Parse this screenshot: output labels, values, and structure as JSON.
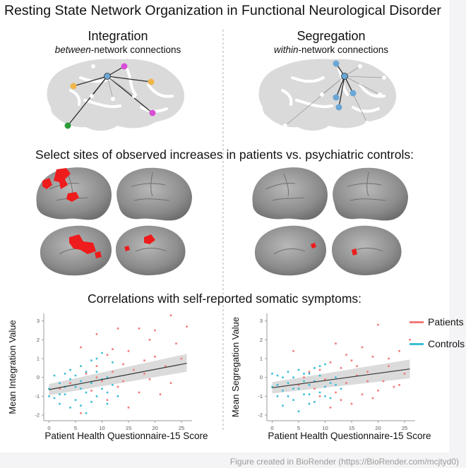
{
  "title": "Resting State Network Organization in Functional Neurological Disorder",
  "integration": {
    "heading": "Integration",
    "sub_italic": "between",
    "sub_rest": "-network connections"
  },
  "segregation": {
    "heading": "Segregation",
    "sub_italic": "within",
    "sub_rest": "-network connections"
  },
  "sites_heading": "Select sites of observed increases in patients vs. psychiatric controls:",
  "correlations_heading": "Correlations with self-reported somatic symptoms:",
  "legend": [
    {
      "label": "Patients",
      "color": "#f07b7b"
    },
    {
      "label": "Controls",
      "color": "#3cbfd6"
    }
  ],
  "credit": "Figure created in BioRender (https://BioRender.com/mcjtyd0)",
  "colors": {
    "patients": "#f07b7b",
    "controls": "#3cbfd6",
    "brain": "#d9d9d9",
    "cortex": "#8a8a8a",
    "activation": "#ee1c1c",
    "node_blue": "#6aa7d6",
    "node_orange": "#f0b64a",
    "node_magenta": "#d94fd6",
    "node_green": "#2e9b3a"
  },
  "chart_data": [
    {
      "type": "scatter",
      "title": "",
      "xlabel": "Patient Health Questionnaire-15 Score",
      "ylabel": "Mean Integration Value",
      "xlim": [
        -1,
        27
      ],
      "ylim": [
        -2.3,
        3.4
      ],
      "xticks": [
        "0",
        "5",
        "10",
        "15",
        "20",
        "25"
      ],
      "yticks": [
        "-2",
        "-1",
        "0",
        "1",
        "2",
        "3"
      ],
      "fit": {
        "x": [
          0,
          26
        ],
        "y": [
          -0.65,
          0.75
        ],
        "band_lo_end": 0.3,
        "band_hi_end": 1.25,
        "band_lo_start": -0.95,
        "band_hi_start": -0.35
      },
      "series": [
        {
          "name": "Patients",
          "points": [
            [
              23,
              3.3
            ],
            [
              26,
              2.7
            ],
            [
              20,
              2.5
            ],
            [
              17,
              2.6
            ],
            [
              13,
              2.6
            ],
            [
              9,
              2.3
            ],
            [
              19,
              2.0
            ],
            [
              24,
              1.8
            ],
            [
              6,
              1.6
            ],
            [
              12,
              1.5
            ],
            [
              15,
              1.4
            ],
            [
              11,
              1.2
            ],
            [
              20,
              1.1
            ],
            [
              25,
              1.0
            ],
            [
              18,
              0.9
            ],
            [
              14,
              0.7
            ],
            [
              22,
              0.6
            ],
            [
              9,
              0.6
            ],
            [
              16,
              0.4
            ],
            [
              7,
              0.2
            ],
            [
              12,
              0.3
            ],
            [
              19,
              -0.1
            ],
            [
              10,
              -0.2
            ],
            [
              23,
              -0.3
            ],
            [
              4,
              -0.3
            ],
            [
              13,
              -0.5
            ],
            [
              17,
              -0.8
            ],
            [
              8,
              -0.7
            ],
            [
              21,
              -0.9
            ],
            [
              11,
              -1.2
            ],
            [
              2,
              -0.6
            ],
            [
              15,
              -1.6
            ],
            [
              6,
              -1.9
            ],
            [
              9,
              0.0
            ],
            [
              18,
              0.2
            ],
            [
              14,
              -0.2
            ]
          ]
        },
        {
          "name": "Controls",
          "points": [
            [
              0,
              -0.6
            ],
            [
              1,
              -1.1
            ],
            [
              2,
              -0.3
            ],
            [
              2,
              -1.4
            ],
            [
              3,
              0.2
            ],
            [
              3,
              -0.9
            ],
            [
              4,
              -1.6
            ],
            [
              4,
              0.4
            ],
            [
              5,
              -0.5
            ],
            [
              5,
              -1.2
            ],
            [
              6,
              0.6
            ],
            [
              6,
              -0.2
            ],
            [
              7,
              -0.8
            ],
            [
              7,
              -1.9
            ],
            [
              8,
              0.9
            ],
            [
              8,
              -0.3
            ],
            [
              9,
              -1.0
            ],
            [
              9,
              0.3
            ],
            [
              10,
              -0.6
            ],
            [
              10,
              1.3
            ],
            [
              11,
              -1.4
            ],
            [
              11,
              0.0
            ],
            [
              12,
              -0.4
            ],
            [
              12,
              0.8
            ],
            [
              13,
              -1.0
            ],
            [
              1,
              0.1
            ],
            [
              3,
              -0.5
            ],
            [
              5,
              0.1
            ],
            [
              6,
              -1.5
            ],
            [
              7,
              0.3
            ],
            [
              8,
              -1.3
            ],
            [
              10,
              -0.1
            ],
            [
              0,
              -1.0
            ],
            [
              4,
              -0.1
            ],
            [
              9,
              1.0
            ],
            [
              11,
              -0.8
            ],
            [
              2,
              -0.9
            ],
            [
              6,
              -0.6
            ]
          ]
        }
      ]
    },
    {
      "type": "scatter",
      "title": "",
      "xlabel": "Patient Health Questionnaire-15 Score",
      "ylabel": "Mean Segregation Value",
      "xlim": [
        -1,
        27
      ],
      "ylim": [
        -2.3,
        3.4
      ],
      "xticks": [
        "0",
        "5",
        "10",
        "15",
        "20",
        "25"
      ],
      "yticks": [
        "-2",
        "-1",
        "0",
        "1",
        "2",
        "3"
      ],
      "fit": {
        "x": [
          0,
          26
        ],
        "y": [
          -0.55,
          0.45
        ],
        "band_lo_end": -0.05,
        "band_hi_end": 0.95,
        "band_lo_start": -0.85,
        "band_hi_start": -0.25
      },
      "series": [
        {
          "name": "Patients",
          "points": [
            [
              4,
              1.4
            ],
            [
              17,
              1.6
            ],
            [
              12,
              1.8
            ],
            [
              20,
              2.8
            ],
            [
              26,
              2.0
            ],
            [
              24,
              1.4
            ],
            [
              19,
              1.1
            ],
            [
              15,
              0.9
            ],
            [
              22,
              0.6
            ],
            [
              11,
              0.8
            ],
            [
              13,
              0.5
            ],
            [
              18,
              0.3
            ],
            [
              25,
              0.2
            ],
            [
              9,
              0.4
            ],
            [
              16,
              0.1
            ],
            [
              7,
              0.3
            ],
            [
              21,
              -0.2
            ],
            [
              14,
              -0.3
            ],
            [
              10,
              -0.1
            ],
            [
              23,
              -0.5
            ],
            [
              12,
              -0.8
            ],
            [
              17,
              -0.9
            ],
            [
              8,
              -0.6
            ],
            [
              19,
              -1.1
            ],
            [
              5,
              -0.4
            ],
            [
              15,
              -1.4
            ],
            [
              11,
              -1.6
            ],
            [
              20,
              -0.7
            ],
            [
              6,
              0.0
            ],
            [
              13,
              -1.2
            ],
            [
              18,
              -0.2
            ],
            [
              24,
              -0.4
            ],
            [
              9,
              -1.0
            ],
            [
              16,
              0.6
            ],
            [
              22,
              1.0
            ],
            [
              14,
              1.2
            ]
          ]
        },
        {
          "name": "Controls",
          "points": [
            [
              0,
              -0.5
            ],
            [
              1,
              -1.0
            ],
            [
              1,
              0.1
            ],
            [
              2,
              -0.7
            ],
            [
              2,
              -1.5
            ],
            [
              3,
              0.3
            ],
            [
              3,
              -0.3
            ],
            [
              4,
              -1.2
            ],
            [
              4,
              0.0
            ],
            [
              5,
              -0.6
            ],
            [
              5,
              -1.8
            ],
            [
              6,
              0.2
            ],
            [
              6,
              -0.9
            ],
            [
              7,
              -0.4
            ],
            [
              7,
              -1.4
            ],
            [
              8,
              0.5
            ],
            [
              8,
              -0.2
            ],
            [
              9,
              -0.8
            ],
            [
              9,
              0.1
            ],
            [
              10,
              -0.5
            ],
            [
              10,
              0.7
            ],
            [
              11,
              -0.3
            ],
            [
              11,
              -1.1
            ],
            [
              12,
              0.0
            ],
            [
              13,
              -0.6
            ],
            [
              0,
              0.2
            ],
            [
              2,
              0.0
            ],
            [
              3,
              -1.0
            ],
            [
              5,
              0.4
            ],
            [
              6,
              -0.2
            ],
            [
              7,
              -0.9
            ],
            [
              8,
              -1.3
            ],
            [
              9,
              0.6
            ],
            [
              10,
              -1.0
            ],
            [
              12,
              -0.4
            ],
            [
              4,
              -0.6
            ],
            [
              1,
              -0.4
            ],
            [
              7,
              0.2
            ]
          ]
        }
      ]
    }
  ]
}
